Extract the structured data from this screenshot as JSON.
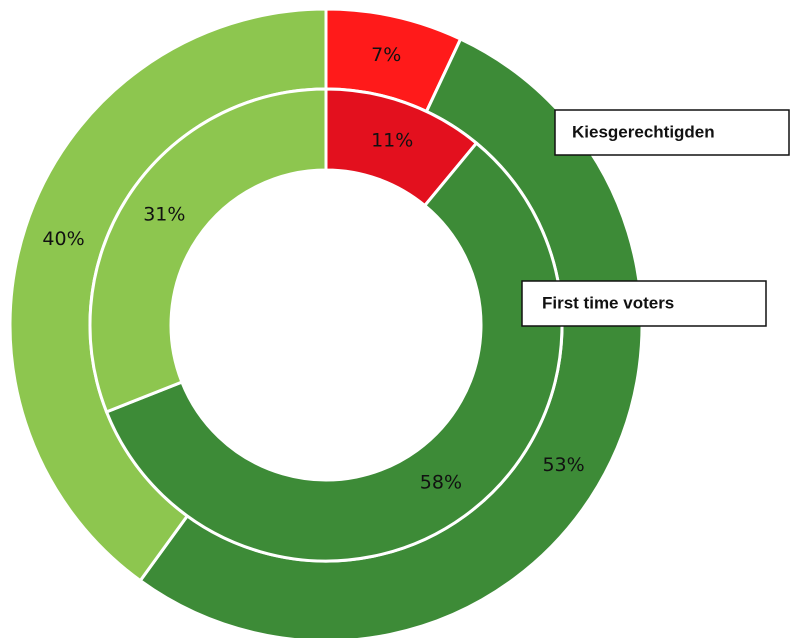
{
  "chart_data": {
    "type": "donut",
    "series": [
      {
        "name": "Kiesgerechtigden",
        "values": [
          7,
          53,
          40
        ],
        "value_labels": [
          "7%",
          "53%",
          "40%"
        ],
        "colors": [
          "#ff1a1a",
          "#3d8b37",
          "#8dc64f"
        ]
      },
      {
        "name": "First time voters",
        "values": [
          11,
          58,
          31
        ],
        "value_labels": [
          "11%",
          "58%",
          "31%"
        ],
        "colors": [
          "#e3101e",
          "#3d8b37",
          "#8dc64f"
        ]
      }
    ]
  }
}
